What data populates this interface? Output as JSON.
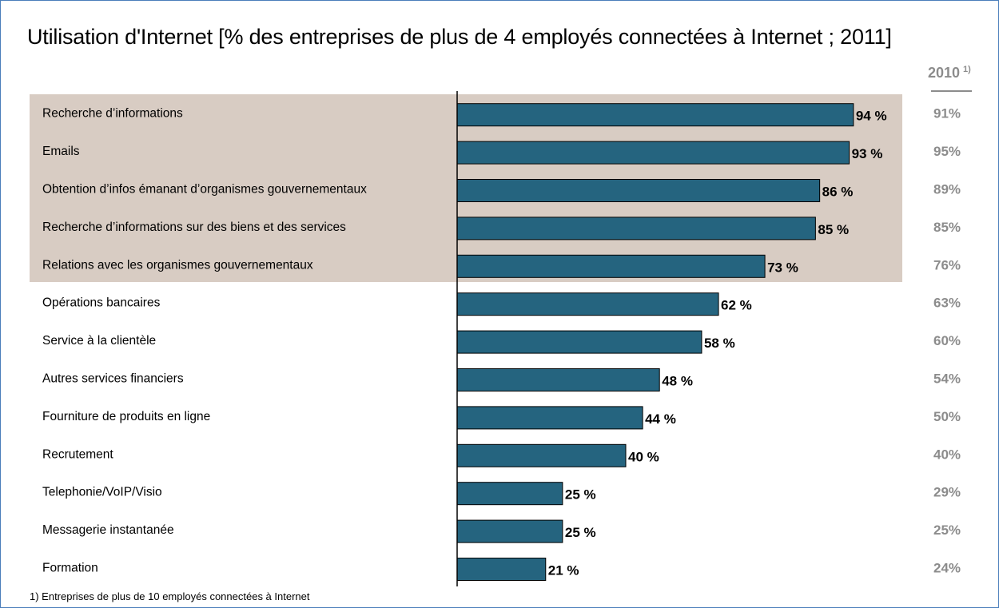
{
  "chart_data": {
    "type": "bar",
    "orientation": "horizontal",
    "title": "Utilisation d'Internet [% des entreprises de plus de 4 employés connectées à Internet ; 2011]",
    "categories": [
      "Recherche d’informations",
      "Emails",
      "Obtention d’infos émanant d’organismes gouvernementaux",
      "Recherche d’informations sur des biens et des services",
      "Relations avec les organismes gouvernementaux",
      "Opérations bancaires",
      "Service à la clientèle",
      "Autres services financiers",
      "Fourniture de produits en ligne",
      "Recrutement",
      "Telephonie/VoIP/Visio",
      "Messagerie instantanée",
      "Formation"
    ],
    "values": [
      94,
      93,
      86,
      85,
      73,
      62,
      58,
      48,
      44,
      40,
      25,
      25,
      21
    ],
    "value_labels": [
      "94 %",
      "93 %",
      "86 %",
      "85 %",
      "73 %",
      "62 %",
      "58 %",
      "48 %",
      "44 %",
      "40 %",
      "25 %",
      "25 %",
      "21 %"
    ],
    "highlighted_count": 5,
    "comparison": {
      "header": "2010",
      "header_note": "1)",
      "values": [
        "91%",
        "95%",
        "89%",
        "85%",
        "76%",
        "63%",
        "60%",
        "54%",
        "50%",
        "40%",
        "29%",
        "25%",
        "24%"
      ]
    },
    "xlim": [
      0,
      100
    ],
    "grid": false,
    "legend": "none",
    "colors": {
      "bar": "#25647f",
      "bar_stroke": "#000000",
      "highlight_band": "#d8ccc3",
      "comparison_text": "#8c8c8c",
      "axis": "#000000"
    }
  },
  "footnote": "1) Entreprises de plus de 10 employés connectées à Internet"
}
